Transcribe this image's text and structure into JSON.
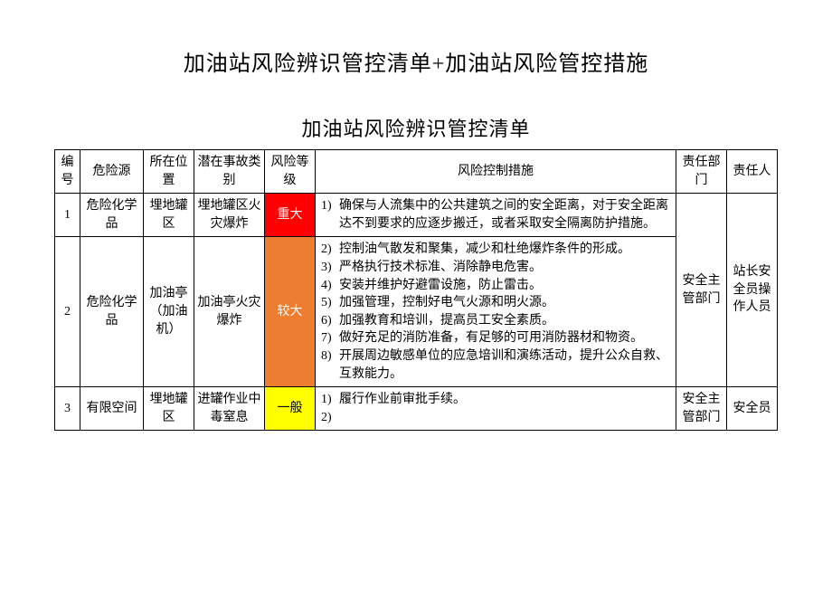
{
  "document": {
    "title": "加油站风险辨识管控清单+加油站风险管控措施",
    "table_title": "加油站风险辨识管控清单"
  },
  "columns": {
    "num": "编号",
    "hazard": "危险源",
    "location": "所在位置",
    "accident": "潜在事故类别",
    "risk_level": "风险等级",
    "measure": "风险控制措施",
    "dept": "责任部门",
    "person": "责任人"
  },
  "risk_colors": {
    "major_bg": "#ff0000",
    "major_fg": "#ffffff",
    "large_bg": "#ed7d31",
    "large_fg": "#ffffff",
    "normal_bg": "#ffff00",
    "normal_fg": "#000000"
  },
  "rows": [
    {
      "num": "1",
      "hazard": "危险化学品",
      "location": "埋地罐区",
      "accident": "埋地罐区火灾爆炸",
      "risk_level": "重大",
      "risk_class": "major",
      "measures": [
        {
          "n": "1)",
          "t": "确保与人流集中的公共建筑之间的安全距离，对于安全距离达不到要求的应逐步搬迁，或者采取安全隔离防护措施。"
        }
      ]
    },
    {
      "num": "2",
      "hazard": "危险化学品",
      "location": "加油亭（加油机）",
      "accident": "加油亭火灾爆炸",
      "risk_level": "较大",
      "risk_class": "large",
      "measures": [
        {
          "n": "2)",
          "t": "控制油气散发和聚集，减少和杜绝爆炸条件的形成。"
        },
        {
          "n": "3)",
          "t": "严格执行技术标准、消除静电危害。"
        },
        {
          "n": "4)",
          "t": "安装并维护好避雷设施，防止雷击。"
        },
        {
          "n": "5)",
          "t": "加强管理，控制好电气火源和明火源。"
        },
        {
          "n": "6)",
          "t": "加强教育和培训，提高员工安全素质。"
        },
        {
          "n": "7)",
          "t": "做好充足的消防准备，有足够的可用消防器材和物资。"
        },
        {
          "n": "8)",
          "t": "开展周边敏感单位的应急培训和演练活动，提升公众自救、互救能力。"
        }
      ]
    },
    {
      "num": "3",
      "hazard": "有限空间",
      "location": "埋地罐区",
      "accident": "进罐作业中毒窒息",
      "risk_level": "一般",
      "risk_class": "normal",
      "measures": [
        {
          "n": "1)",
          "t": "履行作业前审批手续。"
        },
        {
          "n": "2)",
          "t": ""
        }
      ]
    }
  ],
  "dept_merged": {
    "r12": "安全主管部门",
    "r3": "安全主管部门"
  },
  "person_merged": {
    "r12": "站长安全员操作人员",
    "r3": "安全员"
  }
}
